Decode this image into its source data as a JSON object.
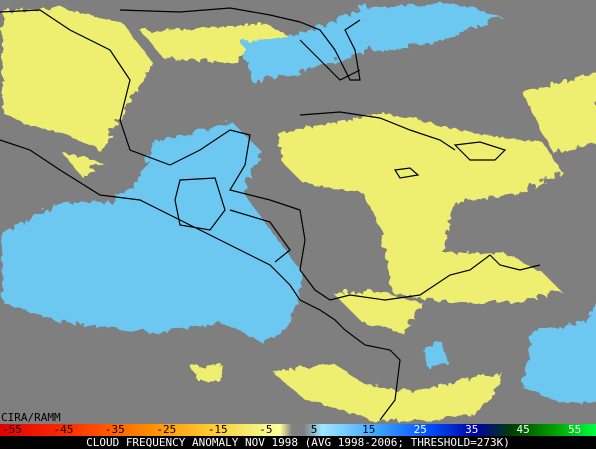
{
  "map": {
    "credit": "CIRA/RAMM"
  },
  "legend": {
    "labels": [
      "-55",
      "-45",
      "-35",
      "-25",
      "-15",
      "-5",
      "5",
      "15",
      "25",
      "35",
      "45",
      "55"
    ],
    "title": "CLOUD FREQUENCY ANOMALY NOV 1998 (AVG 1998-2006; THRESHOLD=273K)"
  }
}
